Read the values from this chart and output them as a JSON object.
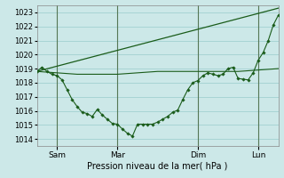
{
  "xlabel": "Pression niveau de la mer( hPa )",
  "ylim": [
    1013.5,
    1023.5
  ],
  "yticks": [
    1014,
    1015,
    1016,
    1017,
    1018,
    1019,
    1020,
    1021,
    1022,
    1023
  ],
  "bg_color": "#cce8e8",
  "grid_color": "#99cccc",
  "line_color": "#1a5c1a",
  "line1_x": [
    0,
    0.5,
    1,
    1.5,
    2,
    2.5,
    3,
    3.5,
    4,
    4.5,
    5,
    5.5,
    6,
    6.5,
    7,
    7.5,
    8,
    8.5,
    9,
    9.5,
    10,
    10.5,
    11,
    11.5,
    12,
    12.5,
    13,
    13.5,
    14,
    14.5,
    15,
    15.5,
    16,
    16.5,
    17,
    17.5,
    18,
    18.5,
    19,
    19.5,
    20,
    20.5,
    21,
    21.5,
    22,
    22.5,
    23,
    23.5,
    24
  ],
  "line1_y": [
    1018.8,
    1019.1,
    1018.8,
    1018.6,
    1018.5,
    1018.2,
    1017.5,
    1016.8,
    1016.3,
    1015.9,
    1015.8,
    1015.6,
    1016.1,
    1015.7,
    1015.4,
    1015.1,
    1015.05,
    1014.7,
    1014.4,
    1014.2,
    1015.05,
    1015.05,
    1015.05,
    1015.05,
    1015.2,
    1015.4,
    1015.6,
    1015.9,
    1016.05,
    1016.8,
    1017.5,
    1018.0,
    1018.15,
    1018.5,
    1018.7,
    1018.6,
    1018.5,
    1018.6,
    1019.0,
    1019.1,
    1018.3,
    1018.25,
    1018.2,
    1018.7,
    1019.6,
    1020.15,
    1021.0,
    1022.1,
    1022.8
  ],
  "line2_x": [
    0,
    2,
    4,
    6,
    8,
    10,
    12,
    14,
    16,
    18,
    20,
    22,
    24
  ],
  "line2_y": [
    1018.8,
    1018.7,
    1018.6,
    1018.6,
    1018.6,
    1018.7,
    1018.8,
    1018.8,
    1018.8,
    1018.8,
    1018.8,
    1018.9,
    1019.0
  ],
  "line3_x": [
    0,
    24
  ],
  "line3_y": [
    1018.8,
    1023.3
  ],
  "xlim": [
    0,
    24
  ],
  "vline_x": [
    2,
    8,
    16,
    22
  ],
  "xtick_positions": [
    2,
    8,
    16,
    22
  ],
  "xtick_labels": [
    "Sam",
    "Mar",
    "Dim",
    "Lun"
  ]
}
